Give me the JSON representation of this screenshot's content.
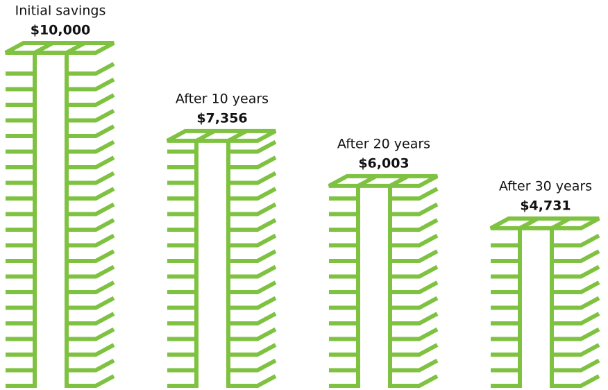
{
  "chart_data": {
    "type": "stack-bar",
    "categories": [
      "Initial savings",
      "After 10 years",
      "After 20 years",
      "After 30 years"
    ],
    "values": [
      10000,
      7356,
      6003,
      4731
    ],
    "value_labels": [
      "$10,000",
      "$7,356",
      "$6,003",
      "$4,731"
    ],
    "color": "#7fc241"
  }
}
